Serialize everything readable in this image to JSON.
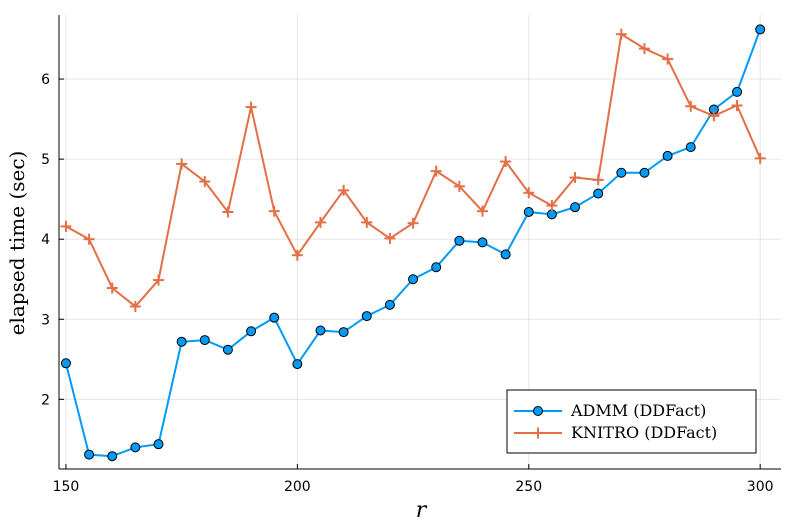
{
  "chart_data": {
    "type": "line",
    "xlabel": "r",
    "ylabel": "elapsed time (sec)",
    "xlim": [
      148.5,
      304.5
    ],
    "ylim": [
      1.13,
      6.8
    ],
    "xticks": [
      150,
      200,
      250,
      300
    ],
    "yticks": [
      2,
      3,
      4,
      5,
      6
    ],
    "grid": true,
    "legend_position": "bottom-right",
    "x": [
      150,
      155,
      160,
      165,
      170,
      175,
      180,
      185,
      190,
      195,
      200,
      205,
      210,
      215,
      220,
      225,
      230,
      235,
      240,
      245,
      250,
      255,
      260,
      265,
      270,
      275,
      280,
      285,
      290,
      295,
      300
    ],
    "series": [
      {
        "name": "ADMM (DDFact)",
        "color": "#009af9",
        "marker": "circle",
        "values": [
          2.45,
          1.31,
          1.29,
          1.4,
          1.44,
          2.72,
          2.74,
          2.62,
          2.85,
          3.02,
          2.44,
          2.86,
          2.84,
          3.04,
          3.18,
          3.5,
          3.65,
          3.98,
          3.96,
          3.81,
          4.34,
          4.31,
          4.4,
          4.57,
          4.83,
          4.83,
          5.04,
          5.15,
          5.62,
          5.84,
          6.62
        ]
      },
      {
        "name": "KNITRO (DDFact)",
        "color": "#e26f46",
        "marker": "cross",
        "values": [
          4.16,
          4.0,
          3.39,
          3.16,
          3.49,
          4.94,
          4.72,
          4.34,
          5.65,
          4.35,
          3.8,
          4.21,
          4.61,
          4.21,
          4.01,
          4.2,
          4.85,
          4.66,
          4.35,
          4.97,
          4.58,
          4.42,
          4.77,
          4.74,
          6.56,
          6.38,
          6.25,
          5.66,
          5.54,
          5.67,
          5.01
        ]
      }
    ]
  }
}
